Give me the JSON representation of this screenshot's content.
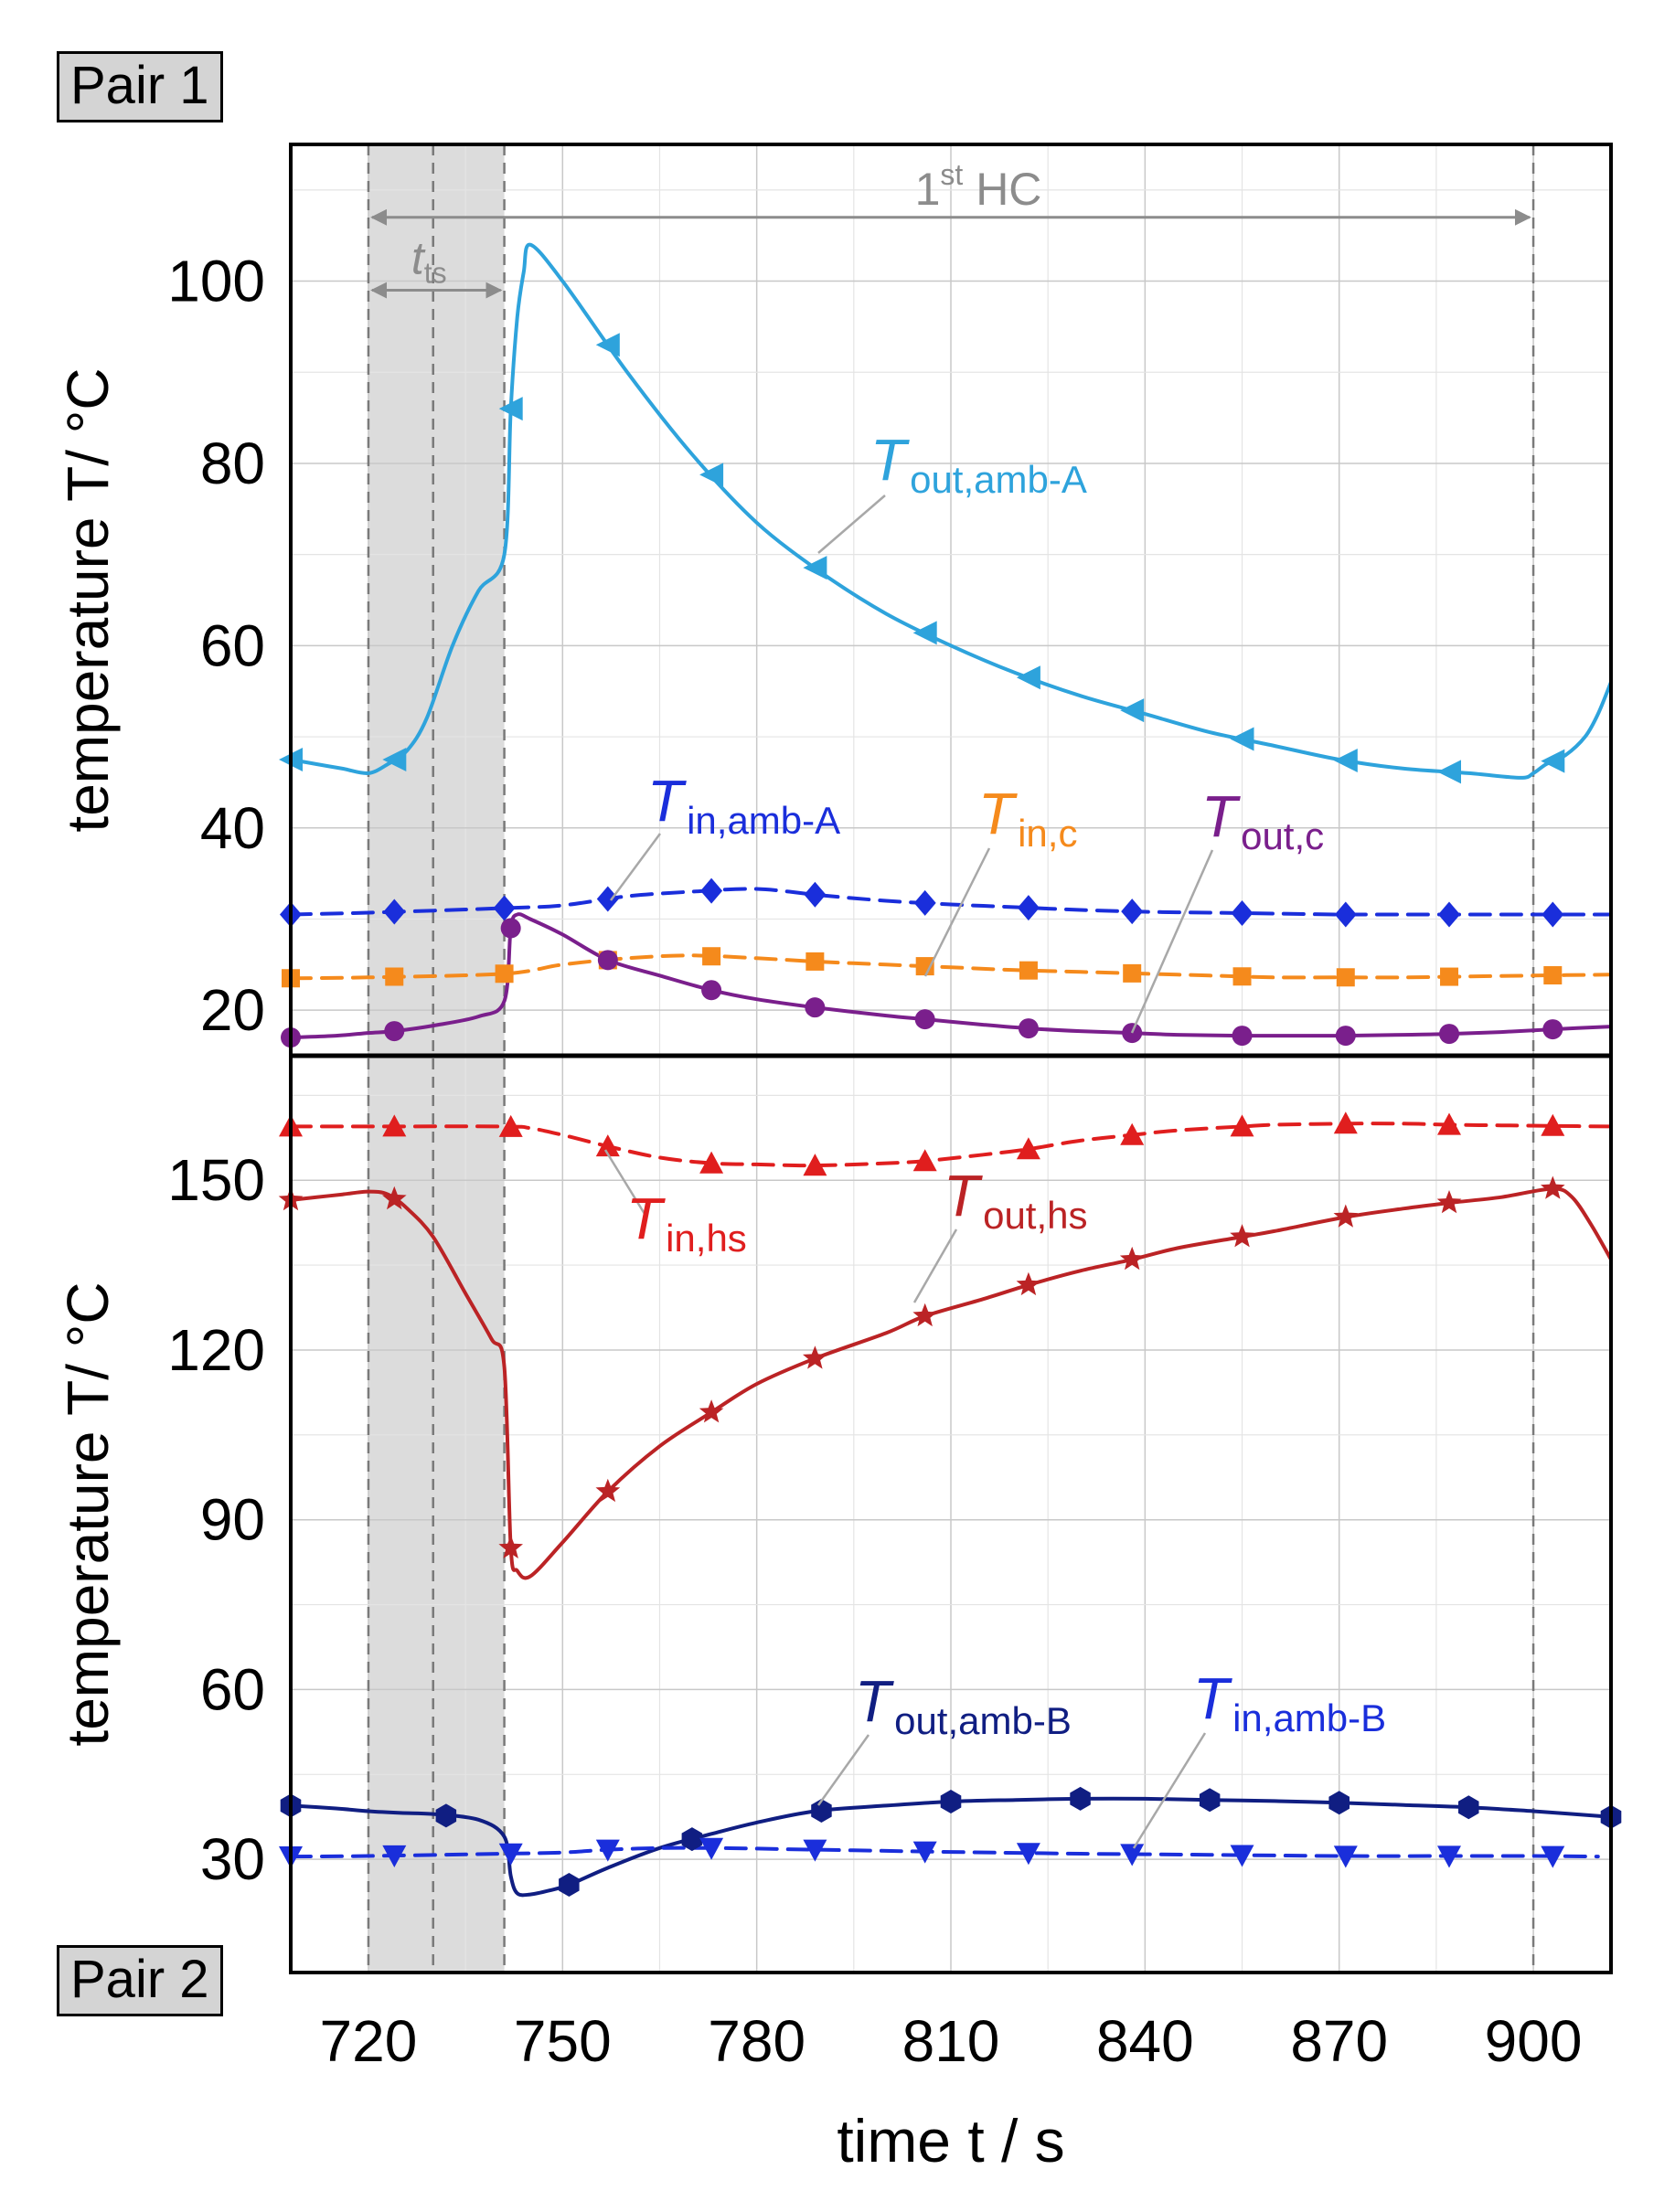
{
  "labels": {
    "pair1": "Pair 1",
    "pair2": "Pair 2"
  },
  "chart_data": [
    {
      "type": "line",
      "panel": "Pair 1",
      "ylabel": "temperature T/ °C",
      "xlabel": "time t / s",
      "xlim": [
        708,
        912
      ],
      "ylim": [
        15,
        115
      ],
      "yticks": [
        20,
        40,
        60,
        80,
        100
      ],
      "xticks": [
        720,
        750,
        780,
        810,
        840,
        870,
        900
      ],
      "grid": true,
      "shaded_region": [
        720,
        741
      ],
      "vlines": [
        720,
        730,
        741,
        900
      ],
      "annotations": {
        "hc": {
          "label": "1st HC",
          "base": "1",
          "sup": "st",
          "rest": " HC",
          "from": 720,
          "to": 900,
          "y": 107
        },
        "tts": {
          "label": "t_ts",
          "base": "t",
          "sub": "ts",
          "from": 720,
          "to": 741,
          "y": 99
        }
      },
      "series": [
        {
          "name": "T_out,amb-A",
          "label_main": "T",
          "label_sub": "out,amb-A",
          "color": "#2ea3dc",
          "dash": false,
          "marker": "triangle-left",
          "x": [
            708,
            712,
            716,
            720,
            723,
            726,
            729,
            733,
            737,
            741,
            742,
            743,
            744,
            745,
            750,
            760,
            770,
            780,
            790,
            800,
            810,
            820,
            830,
            840,
            850,
            860,
            870,
            880,
            890,
            898,
            900,
            902,
            905,
            908,
            910,
            912
          ],
          "y": [
            47.5,
            47,
            46.5,
            46,
            47,
            48.5,
            52,
            60,
            66,
            70,
            86,
            96,
            101,
            104,
            100,
            90,
            81,
            73.5,
            68,
            63.5,
            60,
            57,
            54.5,
            52.5,
            50.5,
            49,
            47.5,
            46.5,
            46,
            45.5,
            46,
            47,
            48,
            50,
            52.5,
            56
          ],
          "marker_x": [
            708,
            724,
            742,
            757,
            773,
            789,
            806,
            822,
            838,
            855,
            871,
            887,
            903
          ]
        },
        {
          "name": "T_in,amb-A",
          "label_main": "T",
          "label_sub": "in,amb-A",
          "color": "#1a2edb",
          "dash": true,
          "marker": "diamond",
          "x": [
            708,
            720,
            741,
            750,
            760,
            770,
            780,
            790,
            800,
            810,
            820,
            830,
            840,
            850,
            860,
            870,
            880,
            890,
            900,
            912
          ],
          "y": [
            30.5,
            30.7,
            31.2,
            31.5,
            32.5,
            33,
            33.3,
            32.6,
            32,
            31.6,
            31.3,
            31,
            30.8,
            30.7,
            30.6,
            30.5,
            30.5,
            30.5,
            30.5,
            30.5
          ],
          "marker_x": [
            708,
            724,
            741,
            757,
            773,
            789,
            806,
            822,
            838,
            855,
            871,
            887,
            903
          ]
        },
        {
          "name": "T_in,c",
          "label_main": "T",
          "label_sub": "in,c",
          "color": "#f58a1c",
          "dash": true,
          "marker": "square",
          "x": [
            708,
            720,
            741,
            750,
            760,
            770,
            780,
            790,
            800,
            810,
            820,
            830,
            840,
            850,
            860,
            870,
            880,
            890,
            900,
            912
          ],
          "y": [
            23.5,
            23.6,
            24,
            25,
            25.7,
            26,
            25.7,
            25.3,
            25,
            24.7,
            24.4,
            24.2,
            24,
            23.8,
            23.6,
            23.6,
            23.6,
            23.7,
            23.8,
            23.9
          ],
          "marker_x": [
            708,
            724,
            741,
            757,
            773,
            789,
            806,
            822,
            838,
            855,
            871,
            887,
            903
          ]
        },
        {
          "name": "T_out,c",
          "label_main": "T",
          "label_sub": "out,c",
          "color": "#7a1f8c",
          "dash": false,
          "marker": "circle",
          "x": [
            708,
            715,
            720,
            724,
            730,
            737,
            741,
            742,
            743,
            745,
            750,
            757,
            765,
            773,
            780,
            789,
            800,
            806,
            815,
            822,
            830,
            838,
            845,
            855,
            860,
            871,
            880,
            887,
            895,
            903,
            912
          ],
          "y": [
            17,
            17.2,
            17.5,
            17.7,
            18.3,
            19.3,
            21,
            29,
            30.5,
            30,
            28.3,
            25.5,
            23.8,
            22.2,
            21.2,
            20.3,
            19.4,
            19,
            18.4,
            18,
            17.7,
            17.5,
            17.3,
            17.2,
            17.2,
            17.2,
            17.3,
            17.4,
            17.6,
            17.9,
            18.2
          ],
          "marker_x": [
            708,
            724,
            742,
            757,
            773,
            789,
            806,
            822,
            838,
            855,
            871,
            887,
            903
          ]
        }
      ]
    },
    {
      "type": "line",
      "panel": "Pair 2",
      "ylabel": "temperature T/ °C",
      "xlabel": "time t / s",
      "xlim": [
        708,
        912
      ],
      "ylim": [
        10,
        172
      ],
      "yticks": [
        30,
        60,
        90,
        120,
        150
      ],
      "xticks": [
        720,
        750,
        780,
        810,
        840,
        870,
        900
      ],
      "xticklabels": [
        "720",
        "750",
        "780",
        "810",
        "840",
        "870",
        "900"
      ],
      "grid": true,
      "series": [
        {
          "name": "T_in,hs",
          "label_main": "T",
          "label_sub": "in,hs",
          "color": "#e01e1e",
          "dash": true,
          "marker": "triangle-up",
          "x": [
            708,
            720,
            741,
            745,
            750,
            757,
            765,
            773,
            780,
            789,
            800,
            806,
            815,
            822,
            830,
            838,
            845,
            855,
            860,
            871,
            880,
            887,
            895,
            903,
            912
          ],
          "y": [
            159.5,
            159.5,
            159.5,
            159.2,
            158,
            156,
            154,
            153,
            152.8,
            152.6,
            153,
            153.4,
            154.5,
            155.5,
            157,
            158,
            158.8,
            159.5,
            159.8,
            160,
            160,
            159.8,
            159.7,
            159.6,
            159.5
          ],
          "marker_x": [
            708,
            724,
            742,
            757,
            773,
            789,
            806,
            822,
            838,
            855,
            871,
            887,
            903
          ]
        },
        {
          "name": "T_out,hs",
          "label_main": "T",
          "label_sub": "out,hs",
          "color": "#bb2325",
          "dash": false,
          "marker": "star",
          "x": [
            708,
            712,
            716,
            720,
            723,
            726,
            730,
            735,
            739,
            741,
            742,
            743,
            745,
            750,
            757,
            765,
            773,
            780,
            789,
            800,
            806,
            815,
            822,
            830,
            838,
            845,
            855,
            860,
            871,
            880,
            887,
            895,
            903,
            906,
            909,
            912
          ],
          "y": [
            146.5,
            147,
            147.5,
            148,
            147.5,
            145,
            140,
            130,
            122,
            117,
            85,
            81,
            80,
            86,
            95,
            103,
            109,
            114,
            118.5,
            123,
            126,
            129,
            131.5,
            134,
            136,
            138,
            140,
            141,
            143.5,
            145,
            146,
            147,
            148.5,
            147,
            142,
            136
          ],
          "marker_x": [
            708,
            724,
            742,
            757,
            773,
            789,
            806,
            822,
            838,
            855,
            871,
            887,
            903
          ]
        },
        {
          "name": "T_out,amb-B",
          "label_main": "T",
          "label_sub": "out,amb-B",
          "color": "#101e82",
          "dash": false,
          "marker": "hexagon",
          "x": [
            708,
            715,
            720,
            725,
            730,
            737,
            741,
            742,
            743,
            745,
            748,
            751,
            757,
            765,
            773,
            780,
            789,
            800,
            810,
            820,
            830,
            840,
            850,
            860,
            870,
            880,
            890,
            900,
            912
          ],
          "y": [
            39.5,
            39,
            38.5,
            38.2,
            38,
            37,
            34,
            27,
            24,
            23.8,
            24.5,
            25.5,
            28.5,
            32,
            34.5,
            36.5,
            38.5,
            39.5,
            40.2,
            40.5,
            40.7,
            40.7,
            40.5,
            40.3,
            40,
            39.6,
            39.2,
            38.5,
            37.5
          ],
          "marker_x": [
            708,
            732,
            751,
            770,
            790,
            810,
            830,
            850,
            870,
            890,
            912
          ]
        },
        {
          "name": "T_in,amb-B",
          "label_main": "T",
          "label_sub": "in,amb-B",
          "color": "#1a2edb",
          "dash": true,
          "marker": "triangle-down",
          "x": [
            708,
            720,
            741,
            750,
            757,
            765,
            773,
            780,
            789,
            800,
            810,
            830,
            850,
            870,
            890,
            900,
            910
          ],
          "y": [
            30.5,
            30.6,
            31,
            31.2,
            31.7,
            32,
            32,
            31.9,
            31.7,
            31.5,
            31.3,
            31,
            30.8,
            30.6,
            30.6,
            30.6,
            30.5
          ],
          "marker_x": [
            708,
            724,
            742,
            757,
            773,
            789,
            806,
            822,
            838,
            855,
            871,
            887,
            903
          ]
        }
      ]
    }
  ]
}
